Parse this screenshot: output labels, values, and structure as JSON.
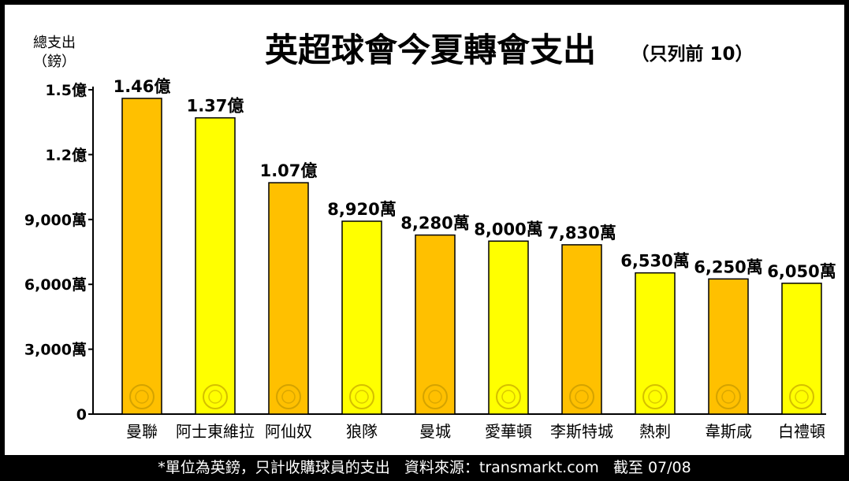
{
  "chart_data": {
    "type": "bar",
    "title": "英超球會今夏轉會支出",
    "subtitle": "（只列前 10）",
    "ylabel": "總支出",
    "yunit": "（鎊）",
    "ylim": [
      0,
      150000000
    ],
    "yticks": [
      {
        "value": 0,
        "label": "0"
      },
      {
        "value": 30000000,
        "label": "3,000萬"
      },
      {
        "value": 60000000,
        "label": "6,000萬"
      },
      {
        "value": 90000000,
        "label": "9,000萬"
      },
      {
        "value": 120000000,
        "label": "1.2億"
      },
      {
        "value": 150000000,
        "label": "1.5億"
      }
    ],
    "categories": [
      "曼聯",
      "阿士東維拉",
      "阿仙奴",
      "狼隊",
      "曼城",
      "愛華頓",
      "李斯特城",
      "熱刺",
      "韋斯咸",
      "白禮頓"
    ],
    "values": [
      146000000,
      137000000,
      107000000,
      89200000,
      82800000,
      80000000,
      78300000,
      65300000,
      62500000,
      60500000
    ],
    "data_labels": [
      "1.46億",
      "1.37億",
      "1.07億",
      "8,920萬",
      "8,280萬",
      "8,000萬",
      "7,830萬",
      "6,530萬",
      "6,250萬",
      "6,050萬"
    ],
    "bar_colors": [
      "#FFC000",
      "#FFFF00",
      "#FFC000",
      "#FFFF00",
      "#FFC000",
      "#FFFF00",
      "#FFC000",
      "#FFFF00",
      "#FFC000",
      "#FFFF00"
    ],
    "crest_icons": [
      "man-utd-crest-icon",
      "aston-villa-crest-icon",
      "arsenal-crest-icon",
      "wolves-crest-icon",
      "man-city-crest-icon",
      "everton-crest-icon",
      "leicester-crest-icon",
      "tottenham-crest-icon",
      "west-ham-crest-icon",
      "brighton-crest-icon"
    ],
    "grid": false,
    "legend": "none"
  },
  "footer": {
    "note": "*單位為英鎊，只計收購球員的支出",
    "source": "資料來源：transmarkt.com",
    "date": "截至 07/08"
  },
  "colors": {
    "frame": "#000000",
    "background": "#FFFFFF",
    "bar_outline": "#000000"
  }
}
